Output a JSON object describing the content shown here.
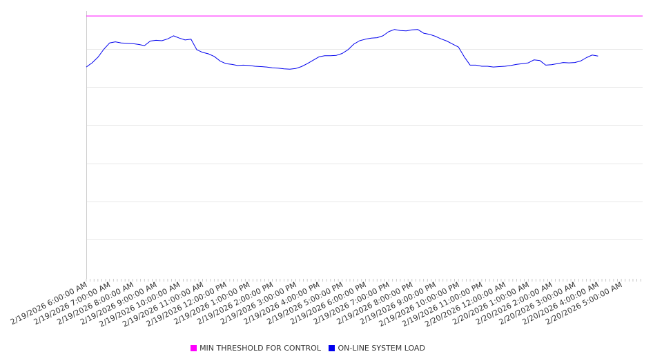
{
  "chart_data": {
    "type": "line",
    "title": "",
    "xlabel": "",
    "ylabel": "",
    "x_ticks": [
      "2/19/2026 6:00:00 AM",
      "2/19/2026 7:00:00 AM",
      "2/19/2026 8:00:00 AM",
      "2/19/2026 9:00:00 AM",
      "2/19/2026 10:00:00 AM",
      "2/19/2026 11:00:00 AM",
      "2/19/2026 12:00:00 PM",
      "2/19/2026 1:00:00 PM",
      "2/19/2026 2:00:00 PM",
      "2/19/2026 3:00:00 PM",
      "2/19/2026 4:00:00 PM",
      "2/19/2026 5:00:00 PM",
      "2/19/2026 6:00:00 PM",
      "2/19/2026 7:00:00 PM",
      "2/19/2026 8:00:00 PM",
      "2/19/2026 9:00:00 PM",
      "2/19/2026 10:00:00 PM",
      "2/19/2026 11:00:00 PM",
      "2/20/2026 12:00:00 AM",
      "2/20/2026 1:00:00 AM",
      "2/20/2026 2:00:00 AM",
      "2/20/2026 3:00:00 AM",
      "2/20/2026 4:00:00 AM",
      "2/20/2026 5:00:00 AM"
    ],
    "x_range": [
      "2/19/2026 6:00:00 AM",
      "2/20/2026 5:55:00 AM"
    ],
    "y_axis_labels_shown": false,
    "grid": true,
    "legend_position": "bottom",
    "series": [
      {
        "name": "MIN THRESHOLD FOR CONTROL",
        "color": "#ff00ff",
        "points": [
          [
            "2/19/2026 6:00:00 AM",
            100
          ],
          [
            "2/20/2026 5:55:00 AM",
            100
          ]
        ]
      },
      {
        "name": "ON-LINE SYSTEM LOAD",
        "color": "#0000ee",
        "points": [
          [
            "2/19/2026 6:00:00 AM",
            86.4
          ],
          [
            "2/19/2026 6:15:00 AM",
            87.5
          ],
          [
            "2/19/2026 6:30:00 AM",
            89.0
          ],
          [
            "2/19/2026 6:45:00 AM",
            91.1
          ],
          [
            "2/19/2026 7:00:00 AM",
            92.8
          ],
          [
            "2/19/2026 7:15:00 AM",
            93.1
          ],
          [
            "2/19/2026 7:30:00 AM",
            92.8
          ],
          [
            "2/19/2026 7:45:00 AM",
            92.7
          ],
          [
            "2/19/2026 8:00:00 AM",
            92.6
          ],
          [
            "2/19/2026 8:15:00 AM",
            92.4
          ],
          [
            "2/19/2026 8:30:00 AM",
            92.1
          ],
          [
            "2/19/2026 8:45:00 AM",
            93.3
          ],
          [
            "2/19/2026 9:00:00 AM",
            93.5
          ],
          [
            "2/19/2026 9:15:00 AM",
            93.4
          ],
          [
            "2/19/2026 9:30:00 AM",
            93.9
          ],
          [
            "2/19/2026 9:45:00 AM",
            94.7
          ],
          [
            "2/19/2026 10:00:00 AM",
            94.1
          ],
          [
            "2/19/2026 10:15:00 AM",
            93.6
          ],
          [
            "2/19/2026 10:30:00 AM",
            93.8
          ],
          [
            "2/19/2026 10:45:00 AM",
            91.0
          ],
          [
            "2/19/2026 11:00:00 AM",
            90.3
          ],
          [
            "2/19/2026 11:15:00 AM",
            89.9
          ],
          [
            "2/19/2026 11:30:00 AM",
            89.2
          ],
          [
            "2/19/2026 11:45:00 AM",
            88.0
          ],
          [
            "2/19/2026 12:00:00 PM",
            87.3
          ],
          [
            "2/19/2026 12:15:00 PM",
            87.1
          ],
          [
            "2/19/2026 12:30:00 PM",
            86.8
          ],
          [
            "2/19/2026 12:45:00 PM",
            86.9
          ],
          [
            "2/19/2026 1:00:00 PM",
            86.8
          ],
          [
            "2/19/2026 1:15:00 PM",
            86.6
          ],
          [
            "2/19/2026 1:30:00 PM",
            86.5
          ],
          [
            "2/19/2026 1:45:00 PM",
            86.4
          ],
          [
            "2/19/2026 2:00:00 PM",
            86.2
          ],
          [
            "2/19/2026 2:15:00 PM",
            86.1
          ],
          [
            "2/19/2026 2:30:00 PM",
            85.9
          ],
          [
            "2/19/2026 2:45:00 PM",
            85.8
          ],
          [
            "2/19/2026 3:00:00 PM",
            86.0
          ],
          [
            "2/19/2026 3:15:00 PM",
            86.5
          ],
          [
            "2/19/2026 3:30:00 PM",
            87.3
          ],
          [
            "2/19/2026 3:45:00 PM",
            88.2
          ],
          [
            "2/19/2026 4:00:00 PM",
            89.1
          ],
          [
            "2/19/2026 4:15:00 PM",
            89.4
          ],
          [
            "2/19/2026 4:30:00 PM",
            89.4
          ],
          [
            "2/19/2026 4:45:00 PM",
            89.5
          ],
          [
            "2/19/2026 5:00:00 PM",
            90.0
          ],
          [
            "2/19/2026 5:15:00 PM",
            91.0
          ],
          [
            "2/19/2026 5:30:00 PM",
            92.5
          ],
          [
            "2/19/2026 5:45:00 PM",
            93.4
          ],
          [
            "2/19/2026 6:00:00 PM",
            93.8
          ],
          [
            "2/19/2026 6:15:00 PM",
            94.1
          ],
          [
            "2/19/2026 6:30:00 PM",
            94.2
          ],
          [
            "2/19/2026 6:45:00 PM",
            94.7
          ],
          [
            "2/19/2026 7:00:00 PM",
            95.8
          ],
          [
            "2/19/2026 7:15:00 PM",
            96.4
          ],
          [
            "2/19/2026 7:30:00 PM",
            96.1
          ],
          [
            "2/19/2026 7:45:00 PM",
            96.0
          ],
          [
            "2/19/2026 8:00:00 PM",
            96.3
          ],
          [
            "2/19/2026 8:15:00 PM",
            96.4
          ],
          [
            "2/19/2026 8:30:00 PM",
            95.4
          ],
          [
            "2/19/2026 8:45:00 PM",
            95.1
          ],
          [
            "2/19/2026 9:00:00 PM",
            94.6
          ],
          [
            "2/19/2026 9:15:00 PM",
            93.9
          ],
          [
            "2/19/2026 9:30:00 PM",
            93.3
          ],
          [
            "2/19/2026 9:45:00 PM",
            92.5
          ],
          [
            "2/19/2026 10:00:00 PM",
            91.7
          ],
          [
            "2/19/2026 10:15:00 PM",
            89.1
          ],
          [
            "2/19/2026 10:30:00 PM",
            86.9
          ],
          [
            "2/19/2026 10:45:00 PM",
            86.9
          ],
          [
            "2/19/2026 11:00:00 PM",
            86.6
          ],
          [
            "2/19/2026 11:15:00 PM",
            86.6
          ],
          [
            "2/19/2026 11:30:00 PM",
            86.4
          ],
          [
            "2/19/2026 11:45:00 PM",
            86.5
          ],
          [
            "2/20/2026 12:00:00 AM",
            86.6
          ],
          [
            "2/20/2026 12:15:00 AM",
            86.8
          ],
          [
            "2/20/2026 12:30:00 AM",
            87.1
          ],
          [
            "2/20/2026 12:45:00 AM",
            87.3
          ],
          [
            "2/20/2026 1:00:00 AM",
            87.5
          ],
          [
            "2/20/2026 1:15:00 AM",
            88.3
          ],
          [
            "2/20/2026 1:30:00 AM",
            88.1
          ],
          [
            "2/20/2026 1:45:00 AM",
            86.9
          ],
          [
            "2/20/2026 2:00:00 AM",
            87.0
          ],
          [
            "2/20/2026 2:15:00 AM",
            87.3
          ],
          [
            "2/20/2026 2:30:00 AM",
            87.6
          ],
          [
            "2/20/2026 2:45:00 AM",
            87.5
          ],
          [
            "2/20/2026 3:00:00 AM",
            87.6
          ],
          [
            "2/20/2026 3:15:00 AM",
            88.0
          ],
          [
            "2/20/2026 3:30:00 AM",
            88.9
          ],
          [
            "2/20/2026 3:45:00 AM",
            89.6
          ],
          [
            "2/20/2026 4:00:00 AM",
            89.3
          ]
        ]
      }
    ]
  }
}
